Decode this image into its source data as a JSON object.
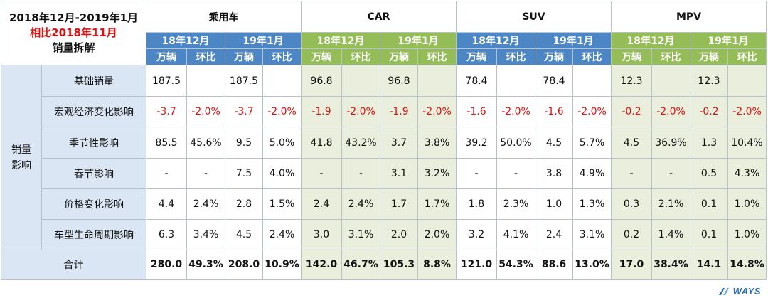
{
  "title": {
    "line1": "2018年12月-2019年1月",
    "line2": "相比2018年11月",
    "line3": "销量拆解"
  },
  "groups": [
    {
      "name": "乘用车",
      "periods": [
        "18年12月",
        "19年1月"
      ],
      "color": "blue"
    },
    {
      "name": "CAR",
      "periods": [
        "18年12月",
        "19年1月"
      ],
      "color": "green"
    },
    {
      "name": "SUV",
      "periods": [
        "18年12月",
        "19年1月"
      ],
      "color": "blue"
    },
    {
      "name": "MPV",
      "periods": [
        "18年12月",
        "19年1月"
      ],
      "color": "green"
    }
  ],
  "units": [
    "万辆",
    "环比"
  ],
  "row_group_label": "销量\n影响",
  "rows": [
    {
      "label": "基础销量",
      "cells": [
        "187.5",
        "",
        "187.5",
        "",
        "96.8",
        "",
        "96.8",
        "",
        "78.4",
        "",
        "78.4",
        "",
        "12.3",
        "",
        "12.3",
        ""
      ]
    },
    {
      "label": "宏观经济变化影响",
      "cells": [
        "-3.7",
        "-2.0%",
        "-3.7",
        "-2.0%",
        "-1.9",
        "-2.0%",
        "-1.9",
        "-2.0%",
        "-1.6",
        "-2.0%",
        "-1.6",
        "-2.0%",
        "-0.2",
        "-2.0%",
        "-0.2",
        "-2.0%"
      ]
    },
    {
      "label": "季节性影响",
      "cells": [
        "85.5",
        "45.6%",
        "9.5",
        "5.0%",
        "41.8",
        "43.2%",
        "3.7",
        "3.8%",
        "39.2",
        "50.0%",
        "4.5",
        "5.7%",
        "4.5",
        "36.9%",
        "1.3",
        "10.4%"
      ]
    },
    {
      "label": "春节影响",
      "cells": [
        "-",
        "-",
        "7.5",
        "4.0%",
        "-",
        "-",
        "3.1",
        "3.2%",
        "-",
        "-",
        "3.8",
        "4.9%",
        "-",
        "-",
        "0.5",
        "4.3%"
      ]
    },
    {
      "label": "价格变化影响",
      "cells": [
        "4.4",
        "2.4%",
        "2.8",
        "1.5%",
        "2.4",
        "2.4%",
        "1.7",
        "1.7%",
        "1.8",
        "2.3%",
        "1.0",
        "1.3%",
        "0.3",
        "2.1%",
        "0.1",
        "1.0%"
      ]
    },
    {
      "label": "车型生命周期影响",
      "cells": [
        "6.3",
        "3.4%",
        "4.5",
        "2.4%",
        "3.0",
        "3.1%",
        "2.0",
        "2.0%",
        "3.2",
        "4.1%",
        "2.4",
        "3.1%",
        "0.2",
        "1.4%",
        "0.1",
        "1.0%"
      ]
    }
  ],
  "total": {
    "label": "合计",
    "cells": [
      "280.0",
      "49.3%",
      "208.0",
      "10.9%",
      "142.0",
      "46.7%",
      "105.3",
      "8.8%",
      "121.0",
      "54.3%",
      "88.6",
      "13.0%",
      "17.0",
      "38.4%",
      "14.1",
      "14.8%"
    ]
  },
  "logo": {
    "text": "WAYS",
    "icon": "ways-logo-icon"
  },
  "colors": {
    "header_blue": "#4d86c5",
    "header_green": "#94bd58",
    "body_blue": "#dbe6f4",
    "body_green": "#e9efdc",
    "negative_red": "#e01010",
    "logo_blue": "#2c6db4"
  }
}
